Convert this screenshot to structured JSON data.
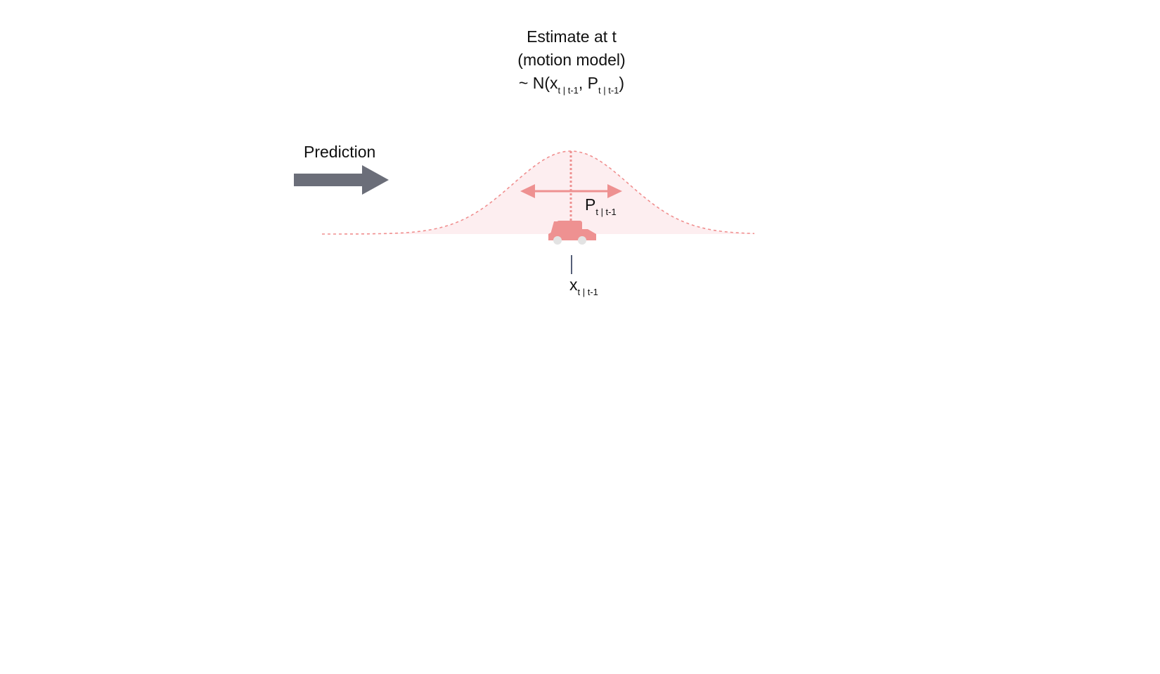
{
  "estimate": {
    "line1": "Estimate at t",
    "line2": "(motion model)",
    "dist_prefix": "~ N(x",
    "dist_sub1": "t | t-1",
    "dist_mid": ", P",
    "dist_sub2": "t | t-1",
    "dist_suffix": ")"
  },
  "prediction": {
    "label": "Prediction",
    "icon": "right-arrow-icon"
  },
  "covariance": {
    "label": "P",
    "sub": "t | t-1"
  },
  "mean": {
    "label": "x",
    "sub": "t | t-1"
  },
  "vehicle": {
    "icon": "car-icon"
  },
  "colors": {
    "curve": "#f08f8f",
    "fill": "#fdeef0",
    "arrow": "#6b6e79",
    "car": "#ee9191",
    "wheel": "#e3e3e3",
    "tick": "#1c2a4a"
  }
}
